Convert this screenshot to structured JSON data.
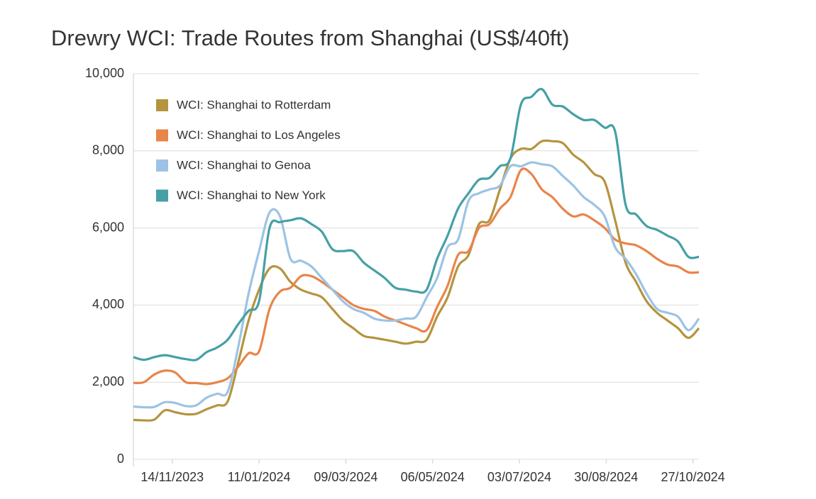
{
  "chart_data": {
    "type": "line",
    "title": "Drewry WCI: Trade Routes from Shanghai (US$/40ft)",
    "x": [
      "19/10/2023",
      "26/10/2023",
      "02/11/2023",
      "09/11/2023",
      "16/11/2023",
      "23/11/2023",
      "30/11/2023",
      "07/12/2023",
      "14/12/2023",
      "21/12/2023",
      "28/12/2023",
      "04/01/2024",
      "11/01/2024",
      "18/01/2024",
      "25/01/2024",
      "01/02/2024",
      "08/02/2024",
      "15/02/2024",
      "22/02/2024",
      "29/02/2024",
      "07/03/2024",
      "14/03/2024",
      "21/03/2024",
      "28/03/2024",
      "04/04/2024",
      "11/04/2024",
      "18/04/2024",
      "25/04/2024",
      "02/05/2024",
      "09/05/2024",
      "16/05/2024",
      "23/05/2024",
      "30/05/2024",
      "06/06/2024",
      "13/06/2024",
      "20/06/2024",
      "27/06/2024",
      "04/07/2024",
      "11/07/2024",
      "18/07/2024",
      "25/07/2024",
      "01/08/2024",
      "08/08/2024",
      "15/08/2024",
      "22/08/2024",
      "29/08/2024",
      "05/09/2024",
      "12/09/2024",
      "19/09/2024",
      "26/09/2024",
      "03/10/2024",
      "10/10/2024",
      "17/10/2024",
      "24/10/2024",
      "31/10/2024"
    ],
    "series": [
      {
        "name": "WCI: Shanghai to Rotterdam",
        "color": "#b5943f",
        "values": [
          1020,
          1010,
          1030,
          1270,
          1220,
          1170,
          1180,
          1300,
          1400,
          1500,
          2500,
          3600,
          4400,
          4950,
          4950,
          4600,
          4400,
          4300,
          4200,
          3900,
          3600,
          3400,
          3200,
          3150,
          3100,
          3050,
          3000,
          3050,
          3100,
          3700,
          4200,
          5000,
          5300,
          6100,
          6200,
          7000,
          7800,
          8050,
          8050,
          8250,
          8250,
          8200,
          7900,
          7700,
          7400,
          7200,
          6200,
          5100,
          4600,
          4100,
          3800,
          3600,
          3400,
          3150,
          3400
        ]
      },
      {
        "name": "WCI: Shanghai to Los Angeles",
        "color": "#e8854a",
        "values": [
          1980,
          2000,
          2200,
          2300,
          2250,
          2000,
          1980,
          1950,
          2000,
          2100,
          2400,
          2750,
          2800,
          3900,
          4350,
          4450,
          4750,
          4750,
          4600,
          4400,
          4200,
          4000,
          3900,
          3850,
          3700,
          3600,
          3500,
          3400,
          3350,
          3950,
          4500,
          5300,
          5400,
          6000,
          6100,
          6500,
          6800,
          7500,
          7400,
          7000,
          6800,
          6500,
          6300,
          6350,
          6200,
          6000,
          5700,
          5600,
          5550,
          5400,
          5200,
          5050,
          5000,
          4850,
          4850
        ]
      },
      {
        "name": "WCI: Shanghai to Genoa",
        "color": "#9cc3e4",
        "values": [
          1370,
          1350,
          1360,
          1480,
          1460,
          1380,
          1400,
          1600,
          1700,
          1750,
          2900,
          4300,
          5400,
          6400,
          6300,
          5200,
          5150,
          5000,
          4700,
          4400,
          4100,
          3900,
          3800,
          3650,
          3600,
          3600,
          3650,
          3700,
          4200,
          4700,
          5500,
          5700,
          6700,
          6900,
          7000,
          7100,
          7600,
          7600,
          7700,
          7650,
          7600,
          7350,
          7100,
          6800,
          6600,
          6300,
          5500,
          5200,
          4800,
          4300,
          3900,
          3800,
          3700,
          3350,
          3650
        ]
      },
      {
        "name": "WCI: Shanghai to New York",
        "color": "#45a0a6",
        "values": [
          2650,
          2580,
          2650,
          2700,
          2650,
          2600,
          2580,
          2780,
          2900,
          3100,
          3500,
          3850,
          4100,
          6000,
          6150,
          6200,
          6250,
          6100,
          5900,
          5450,
          5400,
          5400,
          5100,
          4900,
          4700,
          4450,
          4400,
          4350,
          4400,
          5200,
          5800,
          6500,
          6900,
          7250,
          7300,
          7600,
          7800,
          9200,
          9400,
          9600,
          9200,
          9150,
          8950,
          8800,
          8800,
          8600,
          8500,
          6600,
          6350,
          6050,
          5950,
          5800,
          5650,
          5250,
          5250
        ]
      }
    ],
    "xlim": [
      "19/10/2023",
      "31/10/2024"
    ],
    "xticks": [
      "14/11/2023",
      "11/01/2024",
      "09/03/2024",
      "06/05/2024",
      "03/07/2024",
      "30/08/2024",
      "27/10/2024"
    ],
    "ylim": [
      0,
      10000
    ],
    "yticks": [
      0,
      {
        "value": 2000,
        "label": "2,000"
      },
      {
        "value": 4000,
        "label": "4,000"
      },
      {
        "value": 6000,
        "label": "6,000"
      },
      {
        "value": 8000,
        "label": "8,000"
      },
      {
        "value": 10000,
        "label": "10,000"
      }
    ],
    "grid": true,
    "legend": "upper left"
  }
}
